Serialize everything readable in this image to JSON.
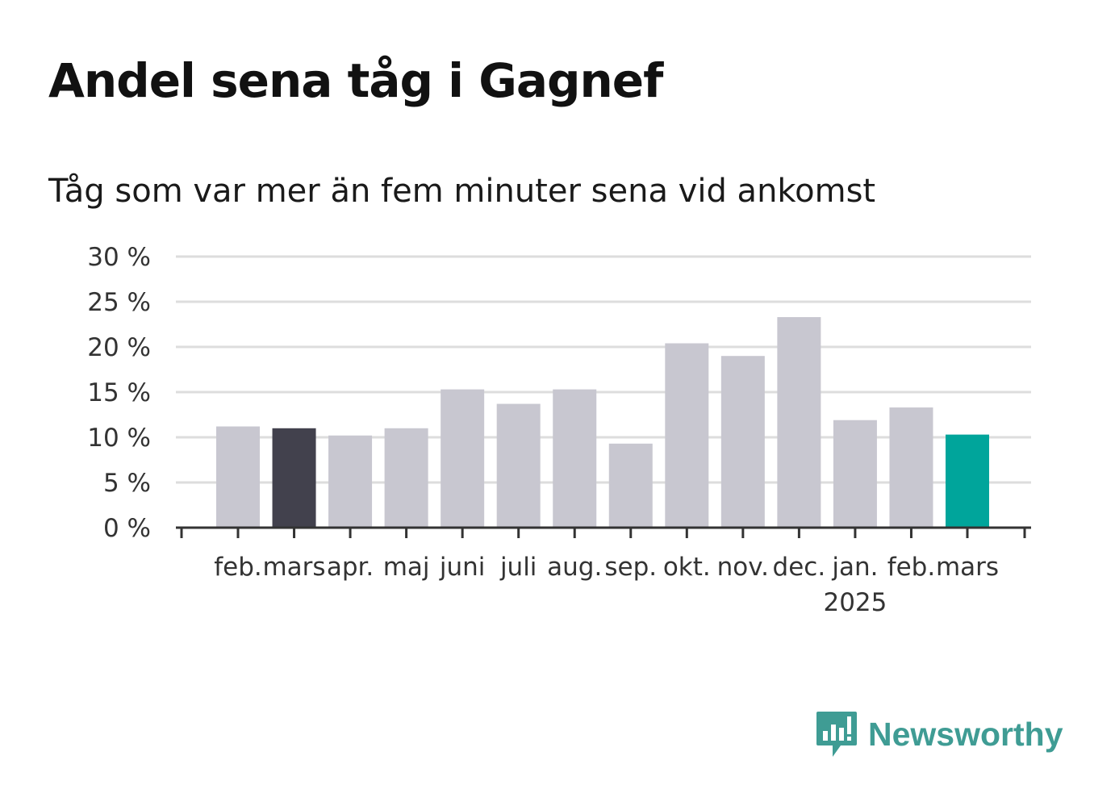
{
  "chart_data": {
    "type": "bar",
    "title": "Andel sena tåg i Gagnef",
    "subtitle": "Tåg som var mer än fem minuter sena vid ankomst",
    "categories": [
      "feb.",
      "mars",
      "apr.",
      "maj",
      "juni",
      "juli",
      "aug.",
      "sep.",
      "okt.",
      "nov.",
      "dec.",
      "jan.",
      "feb.",
      "mars"
    ],
    "year_labels": [
      "",
      "",
      "",
      "",
      "",
      "",
      "",
      "",
      "",
      "",
      "",
      "2025",
      "",
      ""
    ],
    "values": [
      11.2,
      11.0,
      10.2,
      11.0,
      15.3,
      13.7,
      15.3,
      9.3,
      20.4,
      19.0,
      23.3,
      11.9,
      13.3,
      10.3
    ],
    "bar_colors": [
      "#c8c7d0",
      "#42414d",
      "#c8c7d0",
      "#c8c7d0",
      "#c8c7d0",
      "#c8c7d0",
      "#c8c7d0",
      "#c8c7d0",
      "#c8c7d0",
      "#c8c7d0",
      "#c8c7d0",
      "#c8c7d0",
      "#c8c7d0",
      "#00a59b"
    ],
    "ylim": [
      0,
      30
    ],
    "yticks": [
      0,
      5,
      10,
      15,
      20,
      25,
      30
    ],
    "ytick_labels": [
      "0 %",
      "5 %",
      "10 %",
      "15 %",
      "20 %",
      "25 %",
      "30 %"
    ],
    "grid": true,
    "xlabel": "",
    "ylabel": ""
  },
  "logo": {
    "text": "Newsworthy",
    "icon": "newsworthy-chart-icon",
    "color": "#3f9c94"
  },
  "colors": {
    "grid": "#dddddd",
    "axis": "#333333",
    "text": "#1a1a1a"
  }
}
